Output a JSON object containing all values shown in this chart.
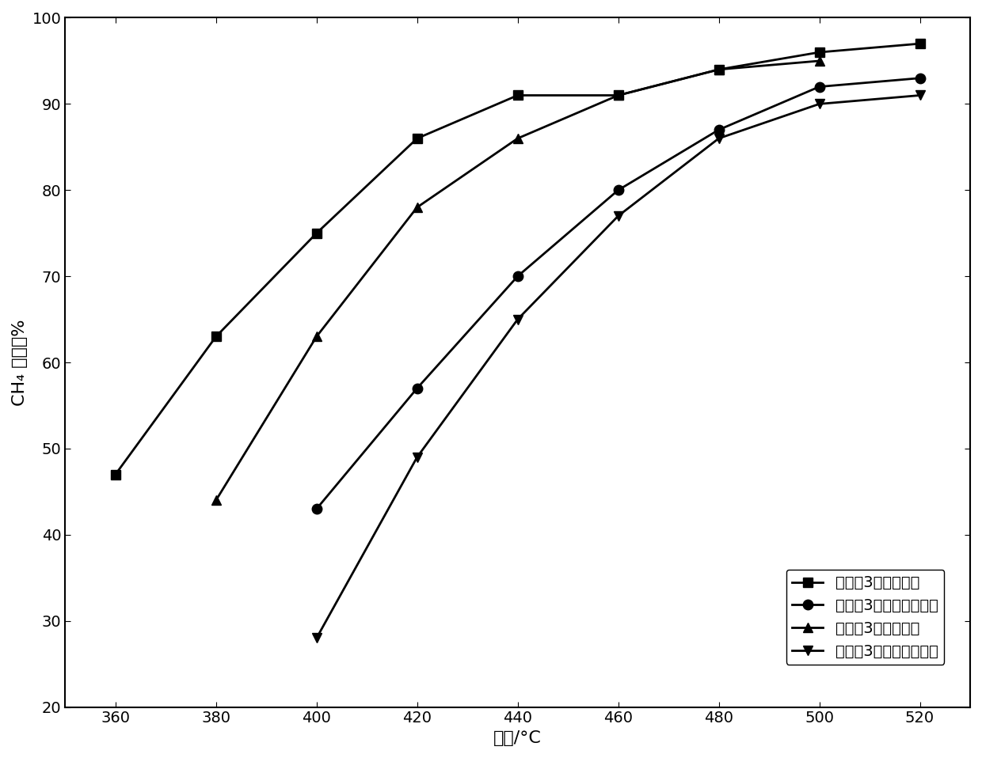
{
  "x": [
    360,
    380,
    400,
    420,
    440,
    460,
    480,
    500,
    520
  ],
  "series1": {
    "label": "实施例3新鲜催化剂",
    "y": [
      47,
      63,
      75,
      86,
      91,
      91,
      94,
      96,
      97
    ],
    "marker": "s",
    "color": "#000000"
  },
  "series2": {
    "label": "实施例3水热老化催化剂",
    "y": [
      null,
      null,
      43,
      57,
      70,
      80,
      87,
      92,
      93
    ],
    "marker": "o",
    "color": "#000000"
  },
  "series3": {
    "label": "对比例3新鲜催化剂",
    "y": [
      null,
      44,
      63,
      78,
      86,
      91,
      94,
      95,
      null
    ],
    "marker": "^",
    "color": "#000000"
  },
  "series4": {
    "label": "对比例3水热老化催化剂",
    "y": [
      null,
      null,
      28,
      49,
      65,
      77,
      86,
      90,
      91
    ],
    "marker": "v",
    "color": "#000000"
  },
  "xlabel": "温度/°C",
  "ylabel": "CH₄ 转化率%",
  "xlim": [
    350,
    530
  ],
  "ylim": [
    20,
    100
  ],
  "xticks": [
    360,
    380,
    400,
    420,
    440,
    460,
    480,
    500,
    520
  ],
  "yticks": [
    20,
    30,
    40,
    50,
    60,
    70,
    80,
    90,
    100
  ],
  "linewidth": 2.0,
  "markersize": 9,
  "legend_fontsize": 14,
  "axis_fontsize": 16,
  "tick_fontsize": 14
}
